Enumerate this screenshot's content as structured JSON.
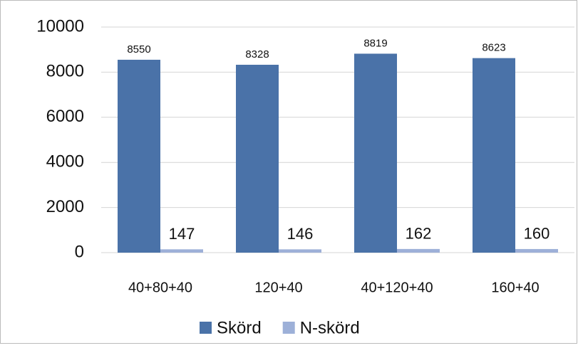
{
  "chart_data": {
    "type": "bar",
    "categories": [
      "40+80+40",
      "120+40",
      "40+120+40",
      "160+40"
    ],
    "series": [
      {
        "name": "Skörd",
        "color": "#4a72a8",
        "values": [
          8550,
          8328,
          8819,
          8623
        ]
      },
      {
        "name": "N-skörd",
        "color": "#9db0d8",
        "values": [
          147,
          146,
          162,
          160
        ]
      }
    ],
    "ylim": [
      0,
      10000
    ],
    "yticks": [
      0,
      2000,
      4000,
      6000,
      8000,
      10000
    ],
    "grid": true,
    "legend": "bottom"
  }
}
